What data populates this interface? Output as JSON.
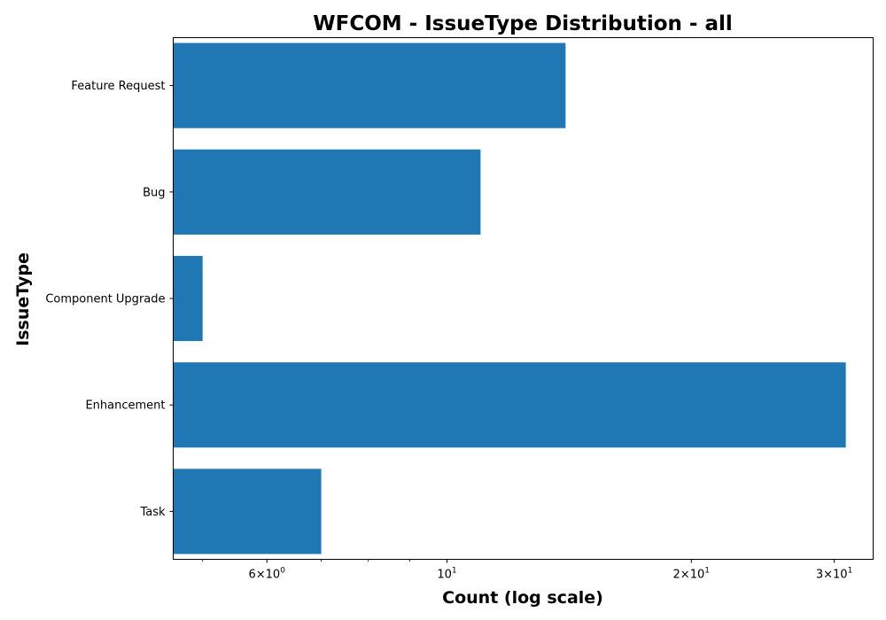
{
  "chart_data": {
    "type": "bar",
    "orientation": "horizontal",
    "title": "WFCOM - IssueType Distribution - all",
    "xlabel": "Count (log scale)",
    "ylabel": "IssueType",
    "x_scale": "log",
    "xlim": [
      4.6,
      33.5
    ],
    "grid": false,
    "categories": [
      "Feature Request",
      "Bug",
      "Component Upgrade",
      "Enhancement",
      "Task"
    ],
    "values": [
      14,
      11,
      5,
      31,
      7
    ],
    "bar_color": "#1f77b4",
    "x_major_ticks": [
      {
        "value": 6,
        "mantissa": "6",
        "base": "10",
        "exp": "0"
      },
      {
        "value": 10,
        "mantissa": "",
        "base": "10",
        "exp": "1"
      },
      {
        "value": 20,
        "mantissa": "2",
        "base": "10",
        "exp": "1"
      },
      {
        "value": 30,
        "mantissa": "3",
        "base": "10",
        "exp": "1"
      }
    ],
    "x_minor_ticks": [
      5,
      7,
      8,
      9
    ]
  }
}
